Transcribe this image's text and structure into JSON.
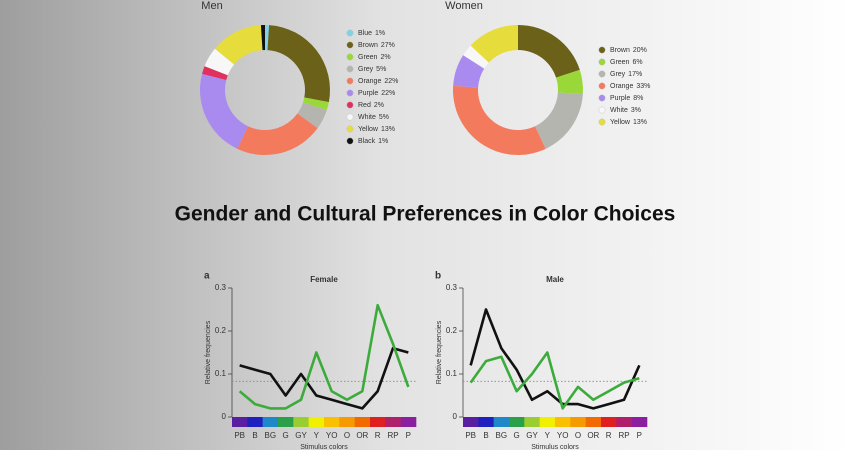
{
  "title": "Gender and Cultural Preferences in Color Choices",
  "chart_data": [
    {
      "type": "donut",
      "title": "Men",
      "categories": [
        "Blue",
        "Brown",
        "Green",
        "Grey",
        "Orange",
        "Purple",
        "Red",
        "White",
        "Yellow",
        "Black"
      ],
      "values": [
        1,
        27,
        2,
        5,
        22,
        22,
        2,
        5,
        13,
        1
      ],
      "value_labels": [
        "1%",
        "27%",
        "2%",
        "5%",
        "22%",
        "22%",
        "2%",
        "5%",
        "13%",
        "1%"
      ],
      "colors": [
        "#7fd3e6",
        "#6b6118",
        "#9ad83a",
        "#b5b5b0",
        "#f47a5e",
        "#a98bef",
        "#e0305e",
        "#f7f7f7",
        "#e6dc3c",
        "#111111"
      ]
    },
    {
      "type": "donut",
      "title": "Women",
      "categories": [
        "Brown",
        "Green",
        "Grey",
        "Orange",
        "Purple",
        "White",
        "Yellow"
      ],
      "values": [
        20,
        6,
        17,
        33,
        8,
        3,
        13
      ],
      "value_labels": [
        "20%",
        "6%",
        "17%",
        "33%",
        "8%",
        "3%",
        "13%"
      ],
      "colors": [
        "#6b6118",
        "#9ad83a",
        "#b5b5b0",
        "#f47a5e",
        "#a98bef",
        "#f7f7f7",
        "#e6dc3c"
      ]
    },
    {
      "type": "line",
      "panel": "a",
      "title": "Female",
      "ylabel": "Relative frequencies",
      "xlabel": "Stimulus colors",
      "categories": [
        "PB",
        "B",
        "BG",
        "G",
        "GY",
        "Y",
        "YO",
        "O",
        "OR",
        "R",
        "RP",
        "P"
      ],
      "category_colors": [
        "#5a1fa0",
        "#2020c0",
        "#1e88c8",
        "#2aa04a",
        "#9acd32",
        "#f0f000",
        "#f8c000",
        "#f59a00",
        "#f06a00",
        "#e02020",
        "#b0206a",
        "#8a1fa0"
      ],
      "series": [
        {
          "color": "#111111",
          "values": [
            0.12,
            0.11,
            0.1,
            0.05,
            0.1,
            0.05,
            0.04,
            0.03,
            0.02,
            0.06,
            0.16,
            0.15
          ]
        },
        {
          "color": "#3cab3c",
          "values": [
            0.06,
            0.03,
            0.02,
            0.02,
            0.04,
            0.15,
            0.06,
            0.04,
            0.06,
            0.26,
            0.17,
            0.07
          ]
        }
      ],
      "reference_line": 0.083,
      "ylim": [
        0,
        0.3
      ],
      "yticks": [
        0,
        0.1,
        0.2,
        0.3
      ]
    },
    {
      "type": "line",
      "panel": "b",
      "title": "Male",
      "ylabel": "Relative frequencies",
      "xlabel": "Stimulus colors",
      "categories": [
        "PB",
        "B",
        "BG",
        "G",
        "GY",
        "Y",
        "YO",
        "O",
        "OR",
        "R",
        "RP",
        "P"
      ],
      "category_colors": [
        "#5a1fa0",
        "#2020c0",
        "#1e88c8",
        "#2aa04a",
        "#9acd32",
        "#f0f000",
        "#f8c000",
        "#f59a00",
        "#f06a00",
        "#e02020",
        "#b0206a",
        "#8a1fa0"
      ],
      "series": [
        {
          "color": "#111111",
          "values": [
            0.12,
            0.25,
            0.16,
            0.11,
            0.04,
            0.06,
            0.03,
            0.03,
            0.02,
            0.03,
            0.04,
            0.12
          ]
        },
        {
          "color": "#3cab3c",
          "values": [
            0.08,
            0.13,
            0.14,
            0.06,
            0.1,
            0.15,
            0.02,
            0.07,
            0.04,
            0.06,
            0.08,
            0.09
          ]
        }
      ],
      "reference_line": 0.083,
      "ylim": [
        0,
        0.3
      ],
      "yticks": [
        0,
        0.1,
        0.2,
        0.3
      ]
    }
  ]
}
